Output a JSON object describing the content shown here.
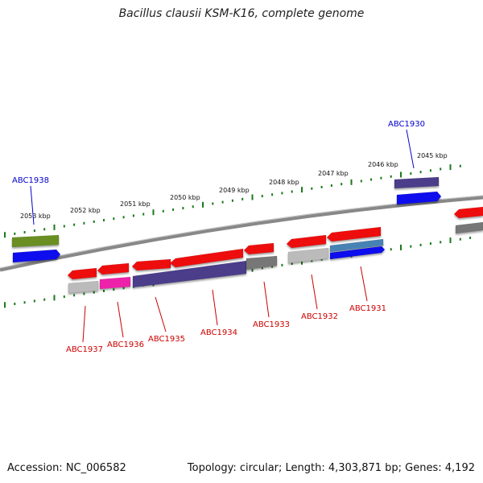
{
  "title": "Bacillus clausii KSM-K16, complete genome",
  "footer": {
    "accession": "Accession: NC_006582",
    "summary": "Topology: circular; Length: 4,303,871 bp; Genes: 4,192"
  },
  "scale_ticks": [
    {
      "label": "2045 kbp",
      "kbp": 2045
    },
    {
      "label": "2046 kbp",
      "kbp": 2046
    },
    {
      "label": "2047 kbp",
      "kbp": 2047
    },
    {
      "label": "2048 kbp",
      "kbp": 2048
    },
    {
      "label": "2049 kbp",
      "kbp": 2049
    },
    {
      "label": "2050 kbp",
      "kbp": 2050
    },
    {
      "label": "2051 kbp",
      "kbp": 2051
    },
    {
      "label": "2052 kbp",
      "kbp": 2052
    },
    {
      "label": "2053 kbp",
      "kbp": 2053
    }
  ],
  "gene_labels": [
    {
      "id": "abc1930",
      "text": "ABC1930",
      "color": "#0000cc"
    },
    {
      "id": "abc1931",
      "text": "ABC1931",
      "color": "#cc0000"
    },
    {
      "id": "abc1932",
      "text": "ABC1932",
      "color": "#cc0000"
    },
    {
      "id": "abc1933",
      "text": "ABC1933",
      "color": "#cc0000"
    },
    {
      "id": "abc1934",
      "text": "ABC1934",
      "color": "#cc0000"
    },
    {
      "id": "abc1935",
      "text": "ABC1935",
      "color": "#cc0000"
    },
    {
      "id": "abc1936",
      "text": "ABC1936",
      "color": "#cc0000"
    },
    {
      "id": "abc1937",
      "text": "ABC1937",
      "color": "#cc0000"
    },
    {
      "id": "abc1938",
      "text": "ABC1938",
      "color": "#0000cc"
    }
  ],
  "colors": {
    "cds": "#ee1111",
    "blue": "#1111ee",
    "olive": "#6b8e23",
    "purple": "#4b3d8a",
    "gray": "#777777",
    "lightgray": "#bbbbbb",
    "magenta": "#ee22aa",
    "steelblue": "#4682b4",
    "tick": "#1a7a1a",
    "backbone": "#888888"
  }
}
